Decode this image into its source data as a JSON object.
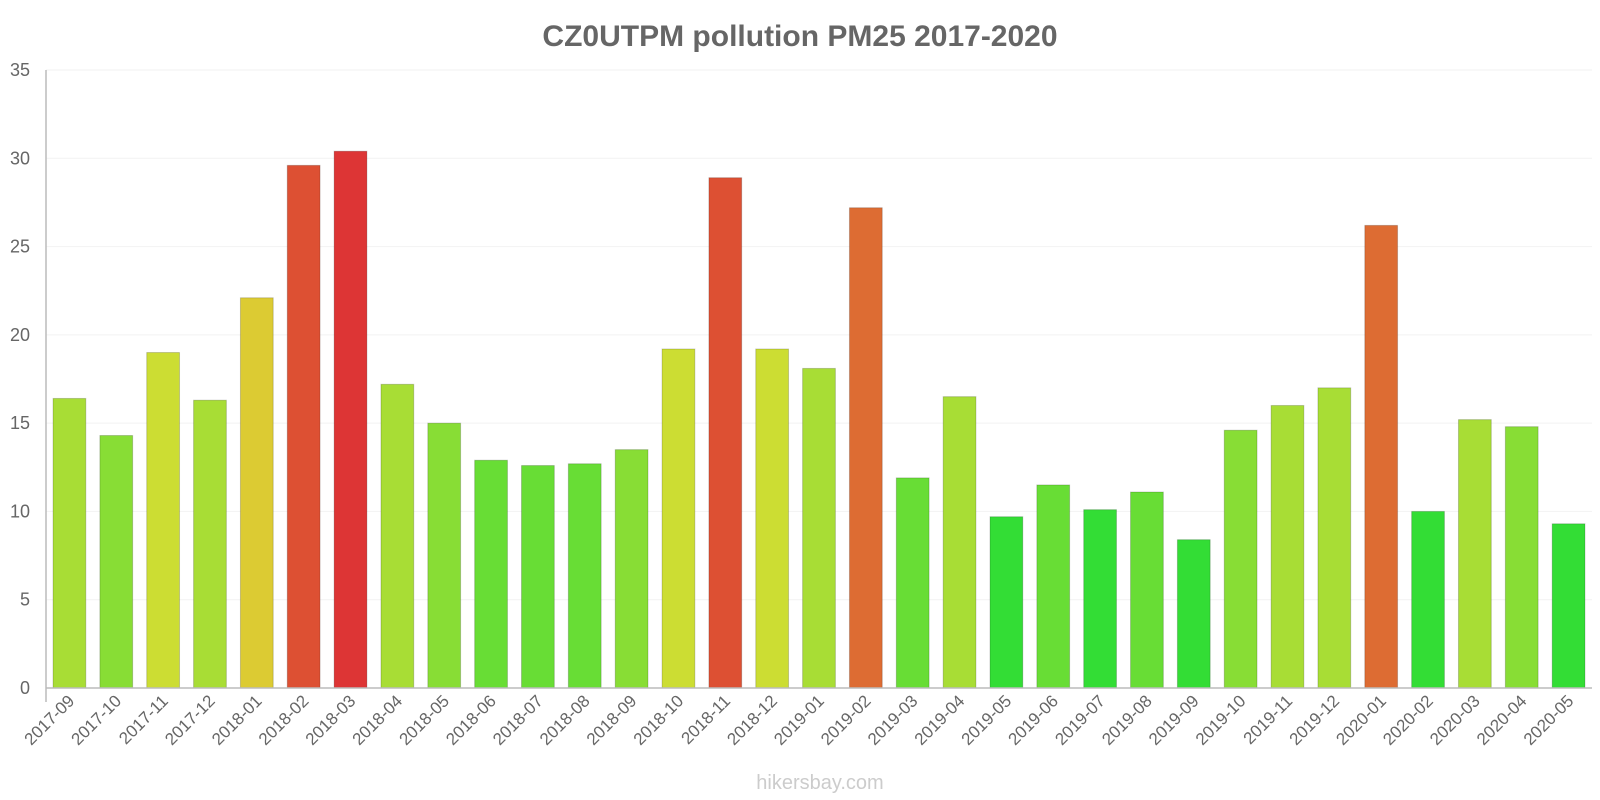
{
  "chart_data": {
    "type": "bar",
    "title": "CZ0UTPM pollution PM25 2017-2020",
    "xlabel": "",
    "ylabel": "",
    "ylim": [
      0,
      35
    ],
    "yticks": [
      0,
      5,
      10,
      15,
      20,
      25,
      30,
      35
    ],
    "grid": true,
    "categories": [
      "2017-09",
      "2017-10",
      "2017-11",
      "2017-12",
      "2018-01",
      "2018-02",
      "2018-03",
      "2018-04",
      "2018-05",
      "2018-06",
      "2018-07",
      "2018-08",
      "2018-09",
      "2018-10",
      "2018-11",
      "2018-12",
      "2019-01",
      "2019-02",
      "2019-03",
      "2019-04",
      "2019-05",
      "2019-06",
      "2019-07",
      "2019-08",
      "2019-09",
      "2019-10",
      "2019-11",
      "2019-12",
      "2020-01",
      "2020-02",
      "2020-03",
      "2020-04",
      "2020-05"
    ],
    "values": [
      16.4,
      14.3,
      19.0,
      16.3,
      22.1,
      29.6,
      30.4,
      17.2,
      15.0,
      12.9,
      12.6,
      12.7,
      13.5,
      19.2,
      28.9,
      19.2,
      18.1,
      27.2,
      11.9,
      16.5,
      9.7,
      11.5,
      10.1,
      11.1,
      8.4,
      14.6,
      16.0,
      17.0,
      26.2,
      10.0,
      15.2,
      14.8,
      9.3
    ],
    "colors": [
      "#a8dd35",
      "#88dd35",
      "#ccdd33",
      "#a8dd35",
      "#dccb33",
      "#dd5033",
      "#dd3535",
      "#a8dd35",
      "#88dd35",
      "#68dd35",
      "#68dd35",
      "#68dd35",
      "#88dd35",
      "#ccdd33",
      "#dd5033",
      "#ccdd33",
      "#a8dd35",
      "#dd6c33",
      "#68dd35",
      "#a8dd35",
      "#33dd35",
      "#68dd35",
      "#33dd35",
      "#68dd35",
      "#33dd35",
      "#88dd35",
      "#a8dd35",
      "#a8dd35",
      "#dd6c33",
      "#33dd35",
      "#a8dd35",
      "#88dd35",
      "#33dd35"
    ]
  },
  "watermark": "hikersbay.com"
}
